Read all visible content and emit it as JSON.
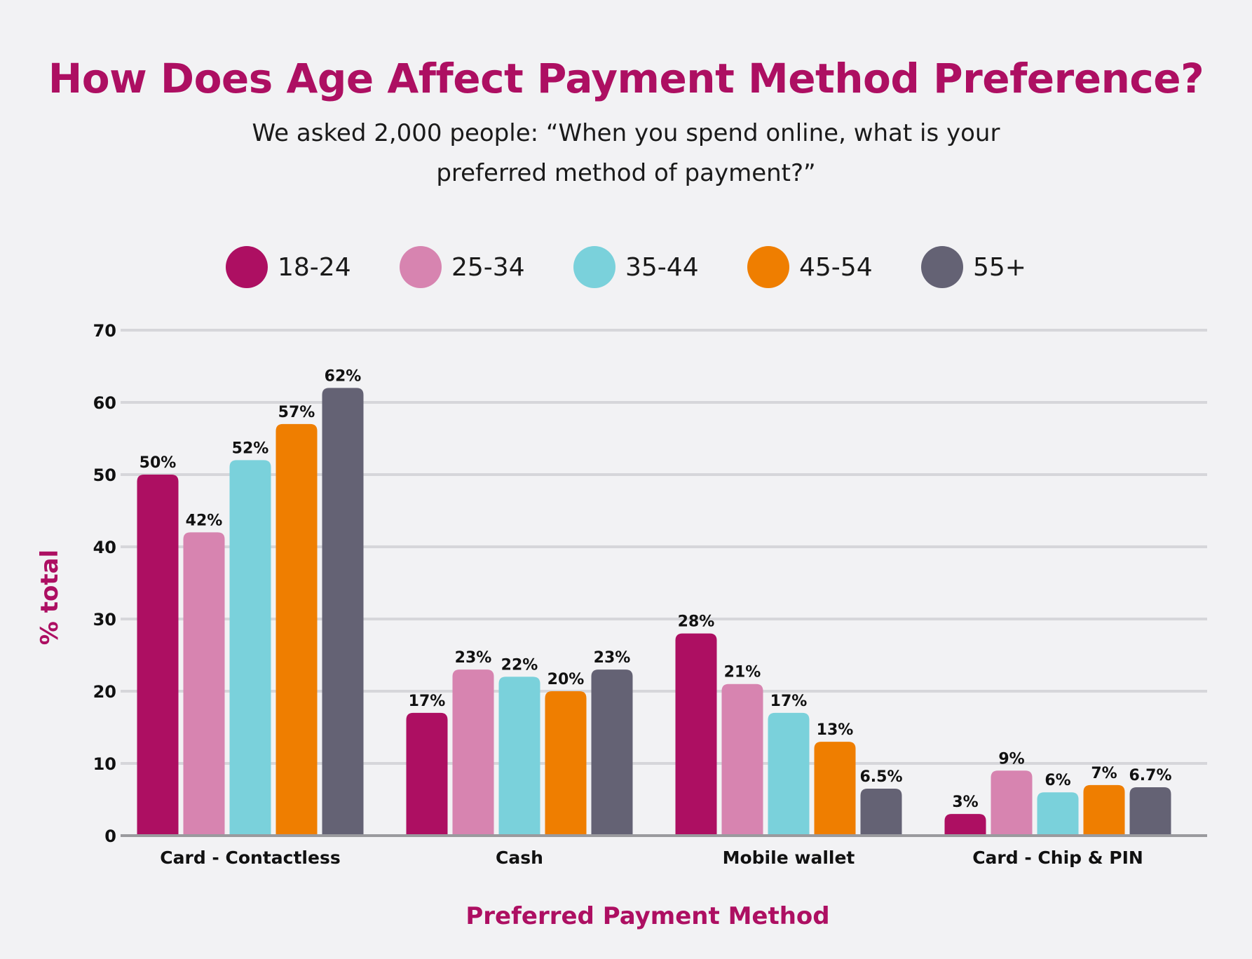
{
  "chart_data": {
    "type": "bar",
    "title": "How Does Age Affect Payment Method Preference?",
    "subtitle_lines": [
      "We asked 2,000 people: “When you spend online, what is your",
      "preferred method of payment?”"
    ],
    "xlabel": "Preferred Payment Method",
    "ylabel": "% total",
    "ylim": [
      0,
      70
    ],
    "yticks": [
      0,
      10,
      20,
      30,
      40,
      50,
      60,
      70
    ],
    "grid": true,
    "legend_position": "top",
    "categories": [
      "Card - Contactless",
      "Cash",
      "Mobile wallet",
      "Card - Chip & PIN"
    ],
    "series": [
      {
        "name": "18-24",
        "color": "#ad0f62",
        "values": [
          50,
          17,
          28,
          3
        ],
        "labels": [
          "50%",
          "17%",
          "28%",
          "3%"
        ]
      },
      {
        "name": "25-34",
        "color": "#d784b0",
        "values": [
          42,
          23,
          21,
          9
        ],
        "labels": [
          "42%",
          "23%",
          "21%",
          "9%"
        ]
      },
      {
        "name": "35-44",
        "color": "#7ad1db",
        "values": [
          52,
          22,
          17,
          6
        ],
        "labels": [
          "52%",
          "22%",
          "17%",
          "6%"
        ]
      },
      {
        "name": "45-54",
        "color": "#ef7e00",
        "values": [
          57,
          20,
          13,
          7
        ],
        "labels": [
          "57%",
          "20%",
          "13%",
          "7%"
        ]
      },
      {
        "name": "55+",
        "color": "#646274",
        "values": [
          62,
          23,
          6.5,
          6.7
        ],
        "labels": [
          "62%",
          "23%",
          "6.5%",
          "6.7%"
        ]
      }
    ]
  }
}
